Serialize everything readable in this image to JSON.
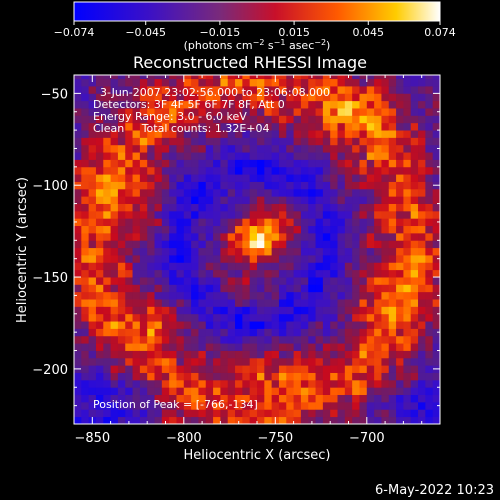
{
  "chart_data": {
    "type": "heatmap",
    "title": "Reconstructed RHESSI Image",
    "xlabel": "Heliocentric X (arcsec)",
    "ylabel": "Heliocentric Y (arcsec)",
    "xlim": [
      -860,
      -660
    ],
    "ylim": [
      -230,
      -40
    ],
    "x_ticks": [
      {
        "value": -850,
        "label": "−850"
      },
      {
        "value": -800,
        "label": "−800"
      },
      {
        "value": -750,
        "label": "−750"
      },
      {
        "value": -700,
        "label": "−700"
      }
    ],
    "y_ticks": [
      {
        "value": -50,
        "label": "−50"
      },
      {
        "value": -100,
        "label": "−100"
      },
      {
        "value": -150,
        "label": "−150"
      },
      {
        "value": -200,
        "label": "−200"
      }
    ],
    "colorbar": {
      "range": [
        -0.074,
        0.074
      ],
      "ticks": [
        {
          "value": -0.074,
          "label": "−0.074"
        },
        {
          "value": -0.045,
          "label": "−0.045"
        },
        {
          "value": -0.015,
          "label": "−0.015"
        },
        {
          "value": 0.015,
          "label": "0.015"
        },
        {
          "value": 0.045,
          "label": "0.045"
        },
        {
          "value": 0.074,
          "label": "0.074"
        }
      ],
      "unit_parts": [
        "(photons cm",
        "−2",
        " s",
        "−1",
        " asec",
        "−2",
        ")"
      ],
      "colormap": "blue-purple-red-yellow-white (RHESSI color table)"
    },
    "peak": [
      -766,
      -134
    ],
    "annotations": [
      "3-Jun-2007 23:02:56.000 to 23:06:08.000",
      "Detectors: 3F 4F 5F 6F 7F 8F, Att 0",
      "Energy Range: 3.0 - 6.0 keV",
      "Clean     Total counts: 1.32E+04",
      "Position of Peak = [-766,-134]"
    ],
    "footer": "6-May-2022 10:23",
    "features": [
      {
        "type": "source",
        "x": -762,
        "y": -130,
        "amp": 0.074,
        "sx": 9,
        "sy": 7
      },
      {
        "type": "source",
        "x": -752,
        "y": -122,
        "amp": 0.035,
        "sx": 12,
        "sy": 10
      },
      {
        "type": "source",
        "x": -768,
        "y": -150,
        "amp": 0.022,
        "sx": 12,
        "sy": 9
      },
      {
        "type": "ring",
        "x": -762,
        "y": -133,
        "r": 88,
        "w": 14,
        "amp": 0.045
      },
      {
        "type": "ring",
        "x": -762,
        "y": -133,
        "r": 42,
        "w": 8,
        "amp": -0.035
      },
      {
        "type": "source",
        "x": -825,
        "y": -110,
        "amp": 0.03,
        "sx": 14,
        "sy": 14
      },
      {
        "type": "source",
        "x": -818,
        "y": -175,
        "amp": 0.03,
        "sx": 14,
        "sy": 12
      },
      {
        "type": "source",
        "x": -700,
        "y": -60,
        "amp": 0.025,
        "sx": 16,
        "sy": 12
      },
      {
        "type": "source",
        "x": -690,
        "y": -160,
        "amp": 0.02,
        "sx": 14,
        "sy": 18
      },
      {
        "type": "source",
        "x": -760,
        "y": -200,
        "amp": 0.025,
        "sx": 18,
        "sy": 10
      },
      {
        "type": "source",
        "x": -840,
        "y": -215,
        "amp": -0.04,
        "sx": 18,
        "sy": 12
      },
      {
        "type": "source",
        "x": -668,
        "y": -225,
        "amp": -0.03,
        "sx": 14,
        "sy": 12
      }
    ]
  }
}
